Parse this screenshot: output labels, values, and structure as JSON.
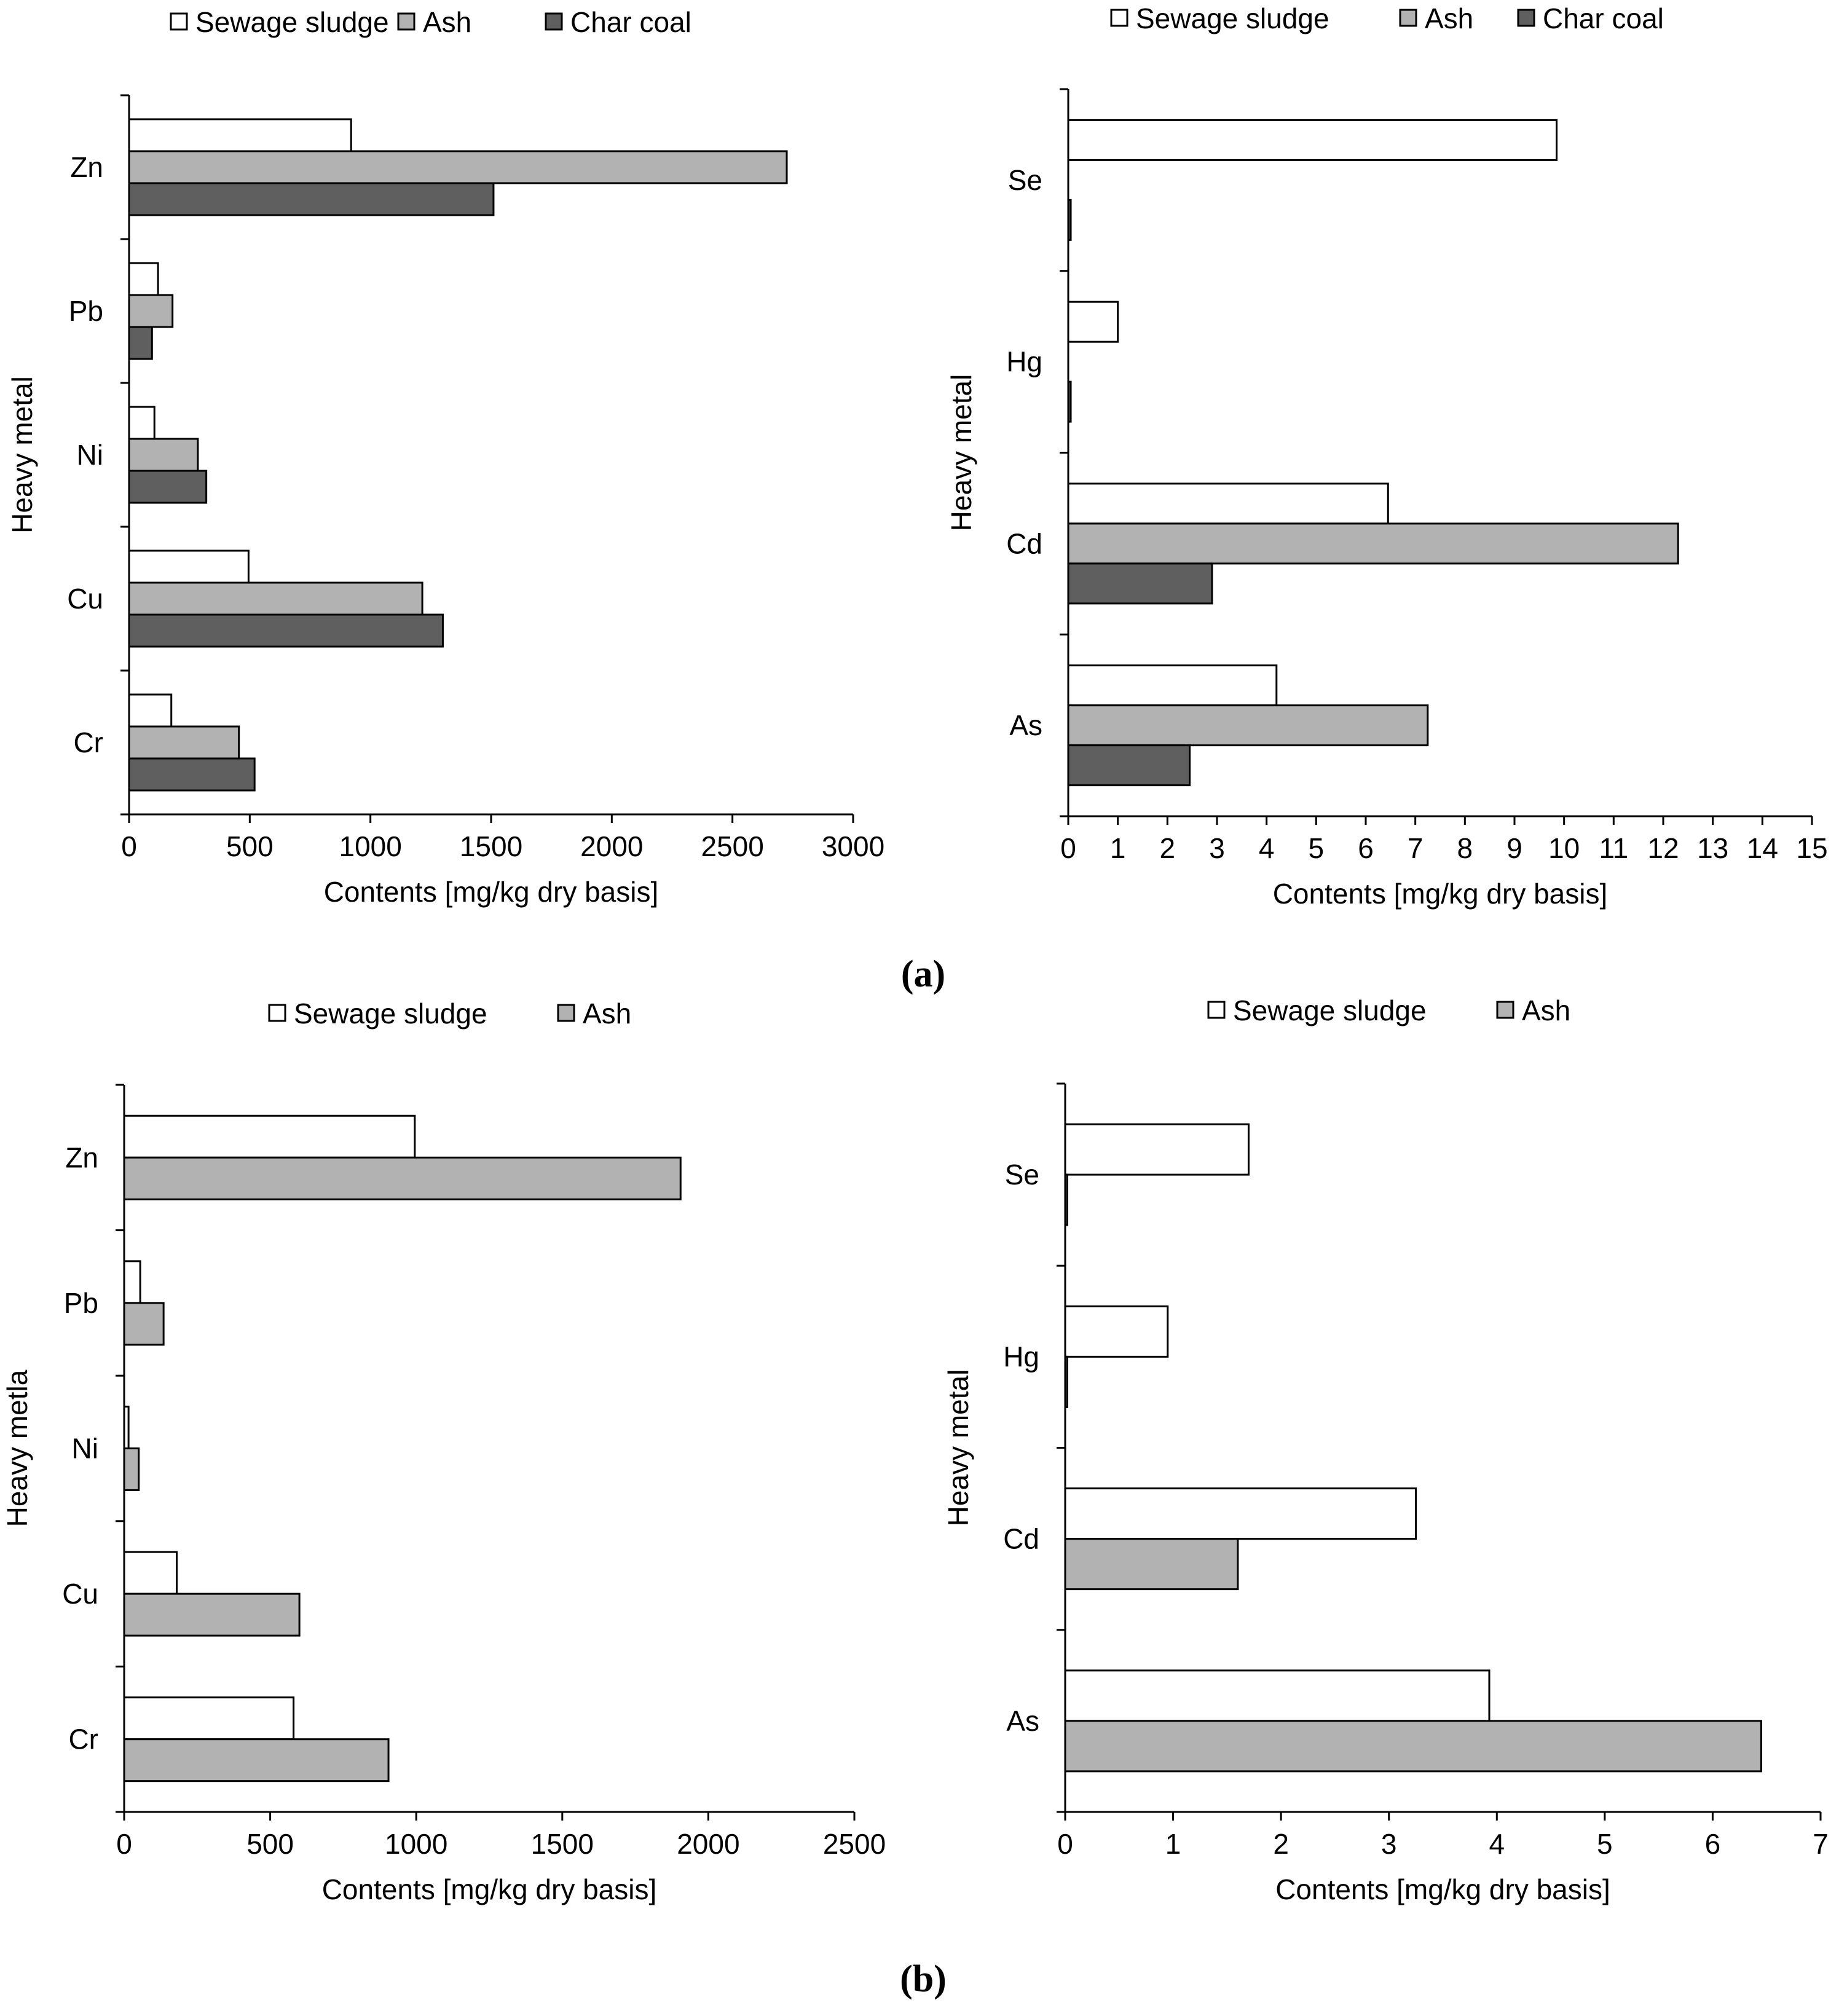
{
  "figure": {
    "panel_a_label": "(a)",
    "panel_b_label": "(b)"
  },
  "colors": {
    "Sewage sludge": "#ffffff",
    "Ash": "#b2b2b2",
    "Char coal": "#5f5f5f"
  },
  "chart_data": [
    {
      "id": "a-left",
      "type": "bar",
      "orientation": "horizontal",
      "categories": [
        "Cr",
        "Cu",
        "Ni",
        "Pb",
        "Zn"
      ],
      "series": [
        {
          "name": "Sewage sludge",
          "values": [
            175,
            495,
            105,
            120,
            920
          ]
        },
        {
          "name": "Ash",
          "values": [
            455,
            1215,
            285,
            180,
            2725
          ]
        },
        {
          "name": "Char coal",
          "values": [
            520,
            1300,
            320,
            95,
            1510
          ]
        }
      ],
      "xlabel": "Contents [mg/kg dry basis]",
      "ylabel": "Heavy metal",
      "xlim": [
        0,
        3000
      ],
      "xticks": [
        "0",
        "500",
        "1000",
        "1500",
        "2000",
        "2500",
        "3000"
      ],
      "legend": [
        "Sewage sludge",
        "Ash",
        "Char coal"
      ],
      "legend_position": "top",
      "grid": false
    },
    {
      "id": "a-right",
      "type": "bar",
      "orientation": "horizontal",
      "categories": [
        "As",
        "Cd",
        "Hg",
        "Se"
      ],
      "series": [
        {
          "name": "Sewage sludge",
          "values": [
            4.2,
            6.45,
            1.0,
            9.85
          ]
        },
        {
          "name": "Ash",
          "values": [
            7.25,
            12.3,
            0,
            0
          ]
        },
        {
          "name": "Char coal",
          "values": [
            2.45,
            2.9,
            0.05,
            0.05
          ]
        }
      ],
      "xlabel": "Contents [mg/kg dry basis]",
      "ylabel": "Heavy metal",
      "xlim": [
        0,
        15
      ],
      "xticks": [
        "0",
        "1",
        "2",
        "3",
        "4",
        "5",
        "6",
        "7",
        "8",
        "9",
        "10",
        "11",
        "12",
        "13",
        "14",
        "15"
      ],
      "legend": [
        "Sewage sludge",
        "Ash",
        "Char coal"
      ],
      "legend_position": "top",
      "grid": false
    },
    {
      "id": "b-left",
      "type": "bar",
      "orientation": "horizontal",
      "categories": [
        "Cr",
        "Cu",
        "Ni",
        "Pb",
        "Zn"
      ],
      "series": [
        {
          "name": "Sewage sludge",
          "values": [
            580,
            180,
            15,
            55,
            995
          ]
        },
        {
          "name": "Ash",
          "values": [
            905,
            600,
            50,
            135,
            1905
          ]
        }
      ],
      "xlabel": "Contents [mg/kg dry basis]",
      "ylabel": "Heavy metla",
      "xlim": [
        0,
        2500
      ],
      "xticks": [
        "0",
        "500",
        "1000",
        "1500",
        "2000",
        "2500"
      ],
      "legend": [
        "Sewage sludge",
        "Ash"
      ],
      "legend_position": "top",
      "grid": false
    },
    {
      "id": "b-right",
      "type": "bar",
      "orientation": "horizontal",
      "categories": [
        "As",
        "Cd",
        "Hg",
        "Se"
      ],
      "series": [
        {
          "name": "Sewage sludge",
          "values": [
            3.93,
            3.25,
            0.95,
            1.7
          ]
        },
        {
          "name": "Ash",
          "values": [
            6.45,
            1.6,
            0.02,
            0.02
          ]
        }
      ],
      "xlabel": "Contents [mg/kg dry basis]",
      "ylabel": "Heavy metal",
      "xlim": [
        0,
        7
      ],
      "xticks": [
        "0",
        "1",
        "2",
        "3",
        "4",
        "5",
        "6",
        "7"
      ],
      "legend": [
        "Sewage sludge",
        "Ash"
      ],
      "legend_position": "top",
      "grid": false
    }
  ]
}
